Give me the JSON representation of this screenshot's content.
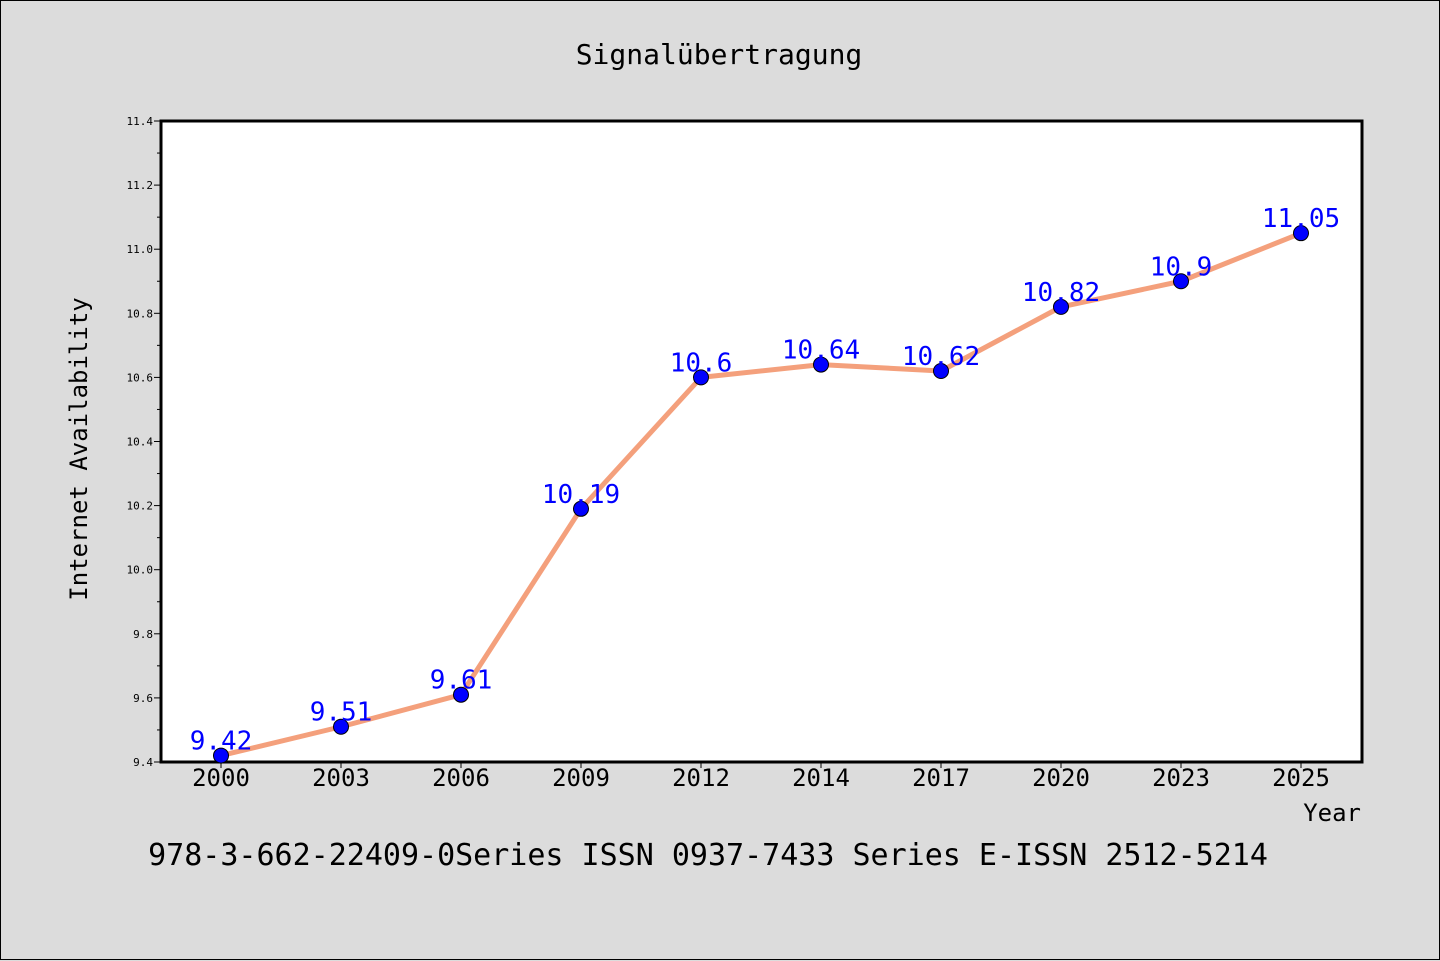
{
  "chart_data": {
    "type": "line",
    "title": "Signalübertragung",
    "xlabel": "Year",
    "ylabel": "Internet Availability",
    "categories": [
      "2000",
      "2003",
      "2006",
      "2009",
      "2012",
      "2014",
      "2017",
      "2020",
      "2023",
      "2025"
    ],
    "series": [
      {
        "values": [
          9.42,
          9.51,
          9.61,
          10.19,
          10.6,
          10.64,
          10.62,
          10.82,
          10.9,
          11.05
        ],
        "line_color": "#f4a07c",
        "marker_color": "#0000ff"
      }
    ],
    "data_labels": [
      "9.42",
      "9.51",
      "9.61",
      "10.19",
      "10.6",
      "10.64",
      "10.62",
      "10.82",
      "10.9",
      "11.05"
    ],
    "ylim": [
      9.4,
      11.4
    ],
    "yticks": [
      "9.4",
      "9.6",
      "9.8",
      "10.0",
      "10.2",
      "10.4",
      "10.6",
      "10.8",
      "11.0",
      "11.2",
      "11.4"
    ],
    "grid": false,
    "background": "#dcdcdc",
    "plot_background": "#ffffff"
  },
  "footer": "978-3-662-22409-0Series ISSN 0937-7433 Series E-ISSN 2512-5214"
}
